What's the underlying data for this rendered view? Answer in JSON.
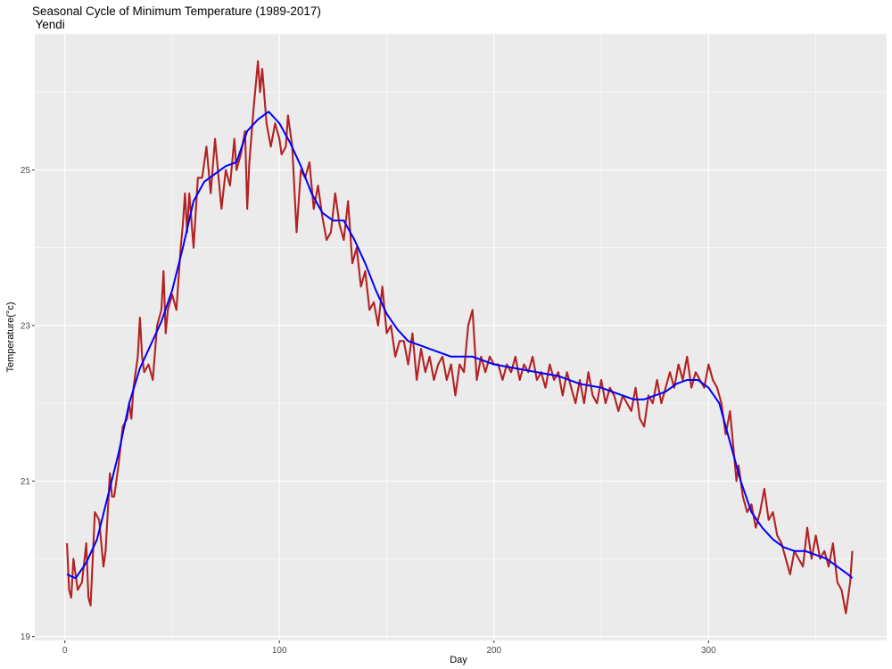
{
  "chart_data": {
    "type": "line",
    "title": "Seasonal Cycle of Minimum Temperature (1989-2017)",
    "subtitle": " Yendi",
    "xlabel": "Day",
    "ylabel": "Temperature(°c)",
    "xlim": [
      -14,
      383
    ],
    "ylim": [
      18.95,
      26.75
    ],
    "x_ticks": [
      0,
      100,
      200,
      300
    ],
    "y_ticks": [
      19,
      21,
      23,
      25
    ],
    "grid": true,
    "panel_background": "#ebebeb",
    "series": [
      {
        "color": "#b22222",
        "style": "daily",
        "points": [
          [
            1,
            20.2
          ],
          [
            2,
            19.6
          ],
          [
            3,
            19.5
          ],
          [
            4,
            20.0
          ],
          [
            6,
            19.6
          ],
          [
            8,
            19.7
          ],
          [
            10,
            20.2
          ],
          [
            11,
            19.5
          ],
          [
            12,
            19.4
          ],
          [
            14,
            20.6
          ],
          [
            16,
            20.5
          ],
          [
            18,
            19.9
          ],
          [
            19,
            20.1
          ],
          [
            21,
            21.1
          ],
          [
            22,
            20.8
          ],
          [
            23,
            20.8
          ],
          [
            25,
            21.2
          ],
          [
            27,
            21.7
          ],
          [
            29,
            21.8
          ],
          [
            30,
            22.0
          ],
          [
            31,
            21.8
          ],
          [
            32,
            22.2
          ],
          [
            34,
            22.6
          ],
          [
            35,
            23.1
          ],
          [
            36,
            22.6
          ],
          [
            37,
            22.4
          ],
          [
            39,
            22.5
          ],
          [
            41,
            22.3
          ],
          [
            43,
            23.0
          ],
          [
            45,
            23.2
          ],
          [
            46,
            23.7
          ],
          [
            47,
            22.9
          ],
          [
            48,
            23.2
          ],
          [
            50,
            23.4
          ],
          [
            52,
            23.2
          ],
          [
            54,
            24.0
          ],
          [
            55,
            24.3
          ],
          [
            56,
            24.7
          ],
          [
            57,
            24.2
          ],
          [
            58,
            24.7
          ],
          [
            60,
            24.0
          ],
          [
            62,
            24.9
          ],
          [
            64,
            24.9
          ],
          [
            66,
            25.3
          ],
          [
            68,
            24.7
          ],
          [
            70,
            25.4
          ],
          [
            72,
            24.8
          ],
          [
            73,
            24.5
          ],
          [
            75,
            25.0
          ],
          [
            77,
            24.8
          ],
          [
            79,
            25.4
          ],
          [
            80,
            25.0
          ],
          [
            82,
            25.2
          ],
          [
            84,
            25.5
          ],
          [
            85,
            24.5
          ],
          [
            86,
            25.1
          ],
          [
            88,
            25.8
          ],
          [
            89,
            26.1
          ],
          [
            90,
            26.4
          ],
          [
            91,
            26.0
          ],
          [
            92,
            26.3
          ],
          [
            94,
            25.6
          ],
          [
            96,
            25.3
          ],
          [
            98,
            25.6
          ],
          [
            100,
            25.4
          ],
          [
            101,
            25.2
          ],
          [
            103,
            25.3
          ],
          [
            104,
            25.7
          ],
          [
            106,
            25.3
          ],
          [
            108,
            24.2
          ],
          [
            110,
            25.0
          ],
          [
            112,
            24.9
          ],
          [
            114,
            25.1
          ],
          [
            116,
            24.5
          ],
          [
            118,
            24.8
          ],
          [
            120,
            24.4
          ],
          [
            122,
            24.1
          ],
          [
            124,
            24.2
          ],
          [
            126,
            24.7
          ],
          [
            128,
            24.3
          ],
          [
            130,
            24.1
          ],
          [
            132,
            24.6
          ],
          [
            134,
            23.8
          ],
          [
            136,
            24.0
          ],
          [
            138,
            23.5
          ],
          [
            140,
            23.7
          ],
          [
            142,
            23.2
          ],
          [
            144,
            23.3
          ],
          [
            146,
            23.0
          ],
          [
            148,
            23.5
          ],
          [
            150,
            22.9
          ],
          [
            152,
            23.0
          ],
          [
            154,
            22.6
          ],
          [
            156,
            22.8
          ],
          [
            158,
            22.8
          ],
          [
            160,
            22.5
          ],
          [
            162,
            22.9
          ],
          [
            164,
            22.3
          ],
          [
            166,
            22.7
          ],
          [
            168,
            22.4
          ],
          [
            170,
            22.6
          ],
          [
            172,
            22.3
          ],
          [
            174,
            22.5
          ],
          [
            176,
            22.6
          ],
          [
            178,
            22.3
          ],
          [
            180,
            22.5
          ],
          [
            182,
            22.1
          ],
          [
            184,
            22.5
          ],
          [
            186,
            22.4
          ],
          [
            188,
            23.0
          ],
          [
            190,
            23.2
          ],
          [
            192,
            22.3
          ],
          [
            194,
            22.6
          ],
          [
            196,
            22.4
          ],
          [
            198,
            22.6
          ],
          [
            200,
            22.5
          ],
          [
            202,
            22.5
          ],
          [
            204,
            22.3
          ],
          [
            206,
            22.5
          ],
          [
            208,
            22.4
          ],
          [
            210,
            22.6
          ],
          [
            212,
            22.3
          ],
          [
            214,
            22.5
          ],
          [
            216,
            22.4
          ],
          [
            218,
            22.6
          ],
          [
            220,
            22.3
          ],
          [
            222,
            22.4
          ],
          [
            224,
            22.2
          ],
          [
            226,
            22.5
          ],
          [
            228,
            22.3
          ],
          [
            230,
            22.4
          ],
          [
            232,
            22.1
          ],
          [
            234,
            22.4
          ],
          [
            236,
            22.2
          ],
          [
            238,
            22.0
          ],
          [
            240,
            22.3
          ],
          [
            242,
            22.0
          ],
          [
            244,
            22.4
          ],
          [
            246,
            22.1
          ],
          [
            248,
            22.0
          ],
          [
            250,
            22.3
          ],
          [
            252,
            22.0
          ],
          [
            254,
            22.2
          ],
          [
            256,
            22.1
          ],
          [
            258,
            21.9
          ],
          [
            260,
            22.1
          ],
          [
            262,
            22.0
          ],
          [
            264,
            21.9
          ],
          [
            266,
            22.2
          ],
          [
            268,
            21.8
          ],
          [
            270,
            21.7
          ],
          [
            272,
            22.1
          ],
          [
            274,
            22.0
          ],
          [
            276,
            22.3
          ],
          [
            278,
            22.0
          ],
          [
            280,
            22.2
          ],
          [
            282,
            22.4
          ],
          [
            284,
            22.2
          ],
          [
            286,
            22.5
          ],
          [
            288,
            22.3
          ],
          [
            290,
            22.6
          ],
          [
            292,
            22.2
          ],
          [
            294,
            22.4
          ],
          [
            296,
            22.3
          ],
          [
            298,
            22.2
          ],
          [
            300,
            22.5
          ],
          [
            302,
            22.3
          ],
          [
            304,
            22.2
          ],
          [
            306,
            22.0
          ],
          [
            308,
            21.6
          ],
          [
            310,
            21.9
          ],
          [
            312,
            21.3
          ],
          [
            313,
            21.0
          ],
          [
            314,
            21.2
          ],
          [
            316,
            20.8
          ],
          [
            318,
            20.6
          ],
          [
            320,
            20.7
          ],
          [
            322,
            20.4
          ],
          [
            324,
            20.6
          ],
          [
            326,
            20.9
          ],
          [
            328,
            20.5
          ],
          [
            330,
            20.6
          ],
          [
            332,
            20.3
          ],
          [
            334,
            20.2
          ],
          [
            336,
            20.0
          ],
          [
            338,
            19.8
          ],
          [
            340,
            20.1
          ],
          [
            342,
            20.0
          ],
          [
            344,
            19.9
          ],
          [
            346,
            20.4
          ],
          [
            348,
            20.0
          ],
          [
            350,
            20.3
          ],
          [
            352,
            20.0
          ],
          [
            354,
            20.1
          ],
          [
            356,
            19.9
          ],
          [
            358,
            20.2
          ],
          [
            360,
            19.7
          ],
          [
            362,
            19.6
          ],
          [
            364,
            19.3
          ],
          [
            366,
            19.7
          ],
          [
            367,
            20.1
          ]
        ]
      },
      {
        "color": "#0000ff",
        "style": "smoothed",
        "points": [
          [
            1,
            19.8
          ],
          [
            5,
            19.75
          ],
          [
            10,
            19.95
          ],
          [
            15,
            20.25
          ],
          [
            20,
            20.8
          ],
          [
            25,
            21.35
          ],
          [
            30,
            22.0
          ],
          [
            35,
            22.45
          ],
          [
            40,
            22.75
          ],
          [
            45,
            23.05
          ],
          [
            50,
            23.45
          ],
          [
            55,
            24.0
          ],
          [
            60,
            24.6
          ],
          [
            65,
            24.85
          ],
          [
            70,
            24.95
          ],
          [
            75,
            25.05
          ],
          [
            80,
            25.1
          ],
          [
            85,
            25.5
          ],
          [
            90,
            25.65
          ],
          [
            95,
            25.75
          ],
          [
            100,
            25.6
          ],
          [
            105,
            25.35
          ],
          [
            110,
            25.05
          ],
          [
            115,
            24.7
          ],
          [
            120,
            24.45
          ],
          [
            125,
            24.35
          ],
          [
            130,
            24.35
          ],
          [
            135,
            24.1
          ],
          [
            140,
            23.8
          ],
          [
            145,
            23.45
          ],
          [
            150,
            23.15
          ],
          [
            155,
            22.95
          ],
          [
            160,
            22.8
          ],
          [
            165,
            22.75
          ],
          [
            170,
            22.7
          ],
          [
            175,
            22.65
          ],
          [
            180,
            22.6
          ],
          [
            185,
            22.6
          ],
          [
            190,
            22.6
          ],
          [
            195,
            22.55
          ],
          [
            200,
            22.5
          ],
          [
            210,
            22.45
          ],
          [
            220,
            22.4
          ],
          [
            230,
            22.35
          ],
          [
            240,
            22.25
          ],
          [
            250,
            22.2
          ],
          [
            255,
            22.15
          ],
          [
            260,
            22.1
          ],
          [
            265,
            22.05
          ],
          [
            270,
            22.05
          ],
          [
            275,
            22.1
          ],
          [
            280,
            22.15
          ],
          [
            285,
            22.25
          ],
          [
            290,
            22.3
          ],
          [
            295,
            22.3
          ],
          [
            300,
            22.2
          ],
          [
            305,
            22.0
          ],
          [
            310,
            21.5
          ],
          [
            315,
            21.0
          ],
          [
            320,
            20.6
          ],
          [
            325,
            20.4
          ],
          [
            330,
            20.25
          ],
          [
            335,
            20.15
          ],
          [
            340,
            20.1
          ],
          [
            345,
            20.1
          ],
          [
            350,
            20.05
          ],
          [
            355,
            20.0
          ],
          [
            360,
            19.9
          ],
          [
            365,
            19.8
          ],
          [
            367,
            19.75
          ]
        ]
      }
    ]
  }
}
